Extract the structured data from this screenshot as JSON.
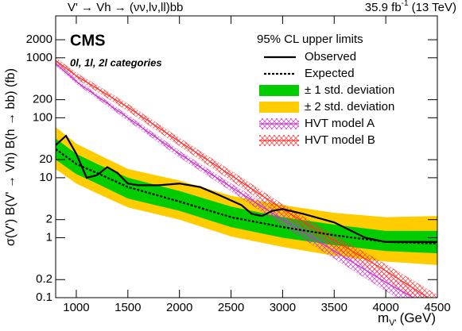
{
  "chart_data": {
    "type": "limit",
    "title_left": "V' → Vh → (νν,lν,ll)bb",
    "lumi": "35.9 fb",
    "lumi_sup": "-1",
    "energy": "(13 TeV)",
    "experiment": "CMS",
    "annotation": "0l, 1l, 2l categories",
    "legend_title": "95% CL upper limits",
    "x_label": "m",
    "x_label_sub": "V'",
    "x_label_unit": "(GeV)",
    "y_label": "σ(V') B(V' → Vh) B(h → bb) (fb)",
    "log_y": true,
    "xlim": [
      800,
      4500
    ],
    "ylim": [
      0.1,
      5000
    ],
    "xticks": [
      1000,
      1500,
      2000,
      2500,
      3000,
      3500,
      4000,
      4500
    ],
    "yticks": [
      0.1,
      0.2,
      1,
      2,
      10,
      20,
      100,
      200,
      1000,
      2000
    ],
    "series": [
      {
        "name": "Observed",
        "kind": "line",
        "color": "#000000",
        "x": [
          800,
          900,
          1000,
          1100,
          1200,
          1300,
          1400,
          1500,
          1600,
          1800,
          2000,
          2200,
          2400,
          2600,
          2700,
          2800,
          2900,
          3000,
          3200,
          3500,
          3800,
          4000,
          4500
        ],
        "values": [
          35,
          50,
          25,
          10,
          11,
          15,
          12,
          8,
          7.5,
          7.5,
          8,
          7,
          5,
          3.5,
          2.5,
          2.3,
          2.8,
          3,
          2.5,
          1.8,
          1,
          0.85,
          0.85
        ]
      },
      {
        "name": "Expected",
        "kind": "dashed",
        "color": "#000000",
        "x": [
          800,
          1000,
          1200,
          1500,
          2000,
          2500,
          3000,
          3500,
          4000,
          4500
        ],
        "values": [
          30,
          17,
          12,
          7,
          4,
          2.2,
          1.5,
          1.1,
          0.85,
          0.8
        ]
      },
      {
        "name": "± 1 std. deviation",
        "kind": "band",
        "color": "#00cc00",
        "x": [
          800,
          1000,
          1200,
          1500,
          2000,
          2500,
          3000,
          3500,
          4000,
          4500
        ],
        "low": [
          20,
          11.5,
          8,
          4.5,
          2.8,
          1.5,
          1,
          0.75,
          0.6,
          0.55
        ],
        "high": [
          45,
          25,
          17,
          10,
          6,
          3.3,
          2.2,
          1.65,
          1.3,
          1.3
        ]
      },
      {
        "name": "± 2 std. deviation",
        "kind": "band",
        "color": "#ffcc00",
        "x": [
          800,
          1000,
          1200,
          1500,
          2000,
          2500,
          3000,
          3500,
          4000,
          4500
        ],
        "low": [
          14,
          8,
          5.5,
          3.2,
          2,
          1.05,
          0.7,
          0.5,
          0.4,
          0.35
        ],
        "high": [
          70,
          37,
          25,
          14,
          9,
          5,
          3.5,
          2.6,
          2.2,
          2.3
        ]
      },
      {
        "name": "HVT model A",
        "kind": "model",
        "color": "#cc33cc",
        "x": [
          800,
          1000,
          1500,
          2000,
          2500,
          3000,
          3500,
          4000,
          4500
        ],
        "values": [
          800,
          400,
          100,
          25,
          7,
          2,
          0.6,
          0.18,
          0.06
        ],
        "low": [
          750,
          370,
          90,
          22,
          6,
          1.6,
          0.45,
          0.13,
          0.04
        ],
        "high": [
          850,
          430,
          110,
          28,
          8,
          2.4,
          0.75,
          0.24,
          0.08
        ]
      },
      {
        "name": "HVT model B",
        "kind": "model",
        "color": "#ff3333",
        "x": [
          800,
          1000,
          1500,
          2000,
          2500,
          3000,
          3500,
          4000,
          4500
        ],
        "values": [
          900,
          500,
          150,
          40,
          11,
          3,
          0.9,
          0.28,
          0.08
        ],
        "low": [
          820,
          450,
          130,
          34,
          9,
          2.4,
          0.7,
          0.2,
          0.055
        ],
        "high": [
          1000,
          560,
          170,
          46,
          13,
          3.6,
          1.1,
          0.36,
          0.11
        ]
      }
    ]
  }
}
